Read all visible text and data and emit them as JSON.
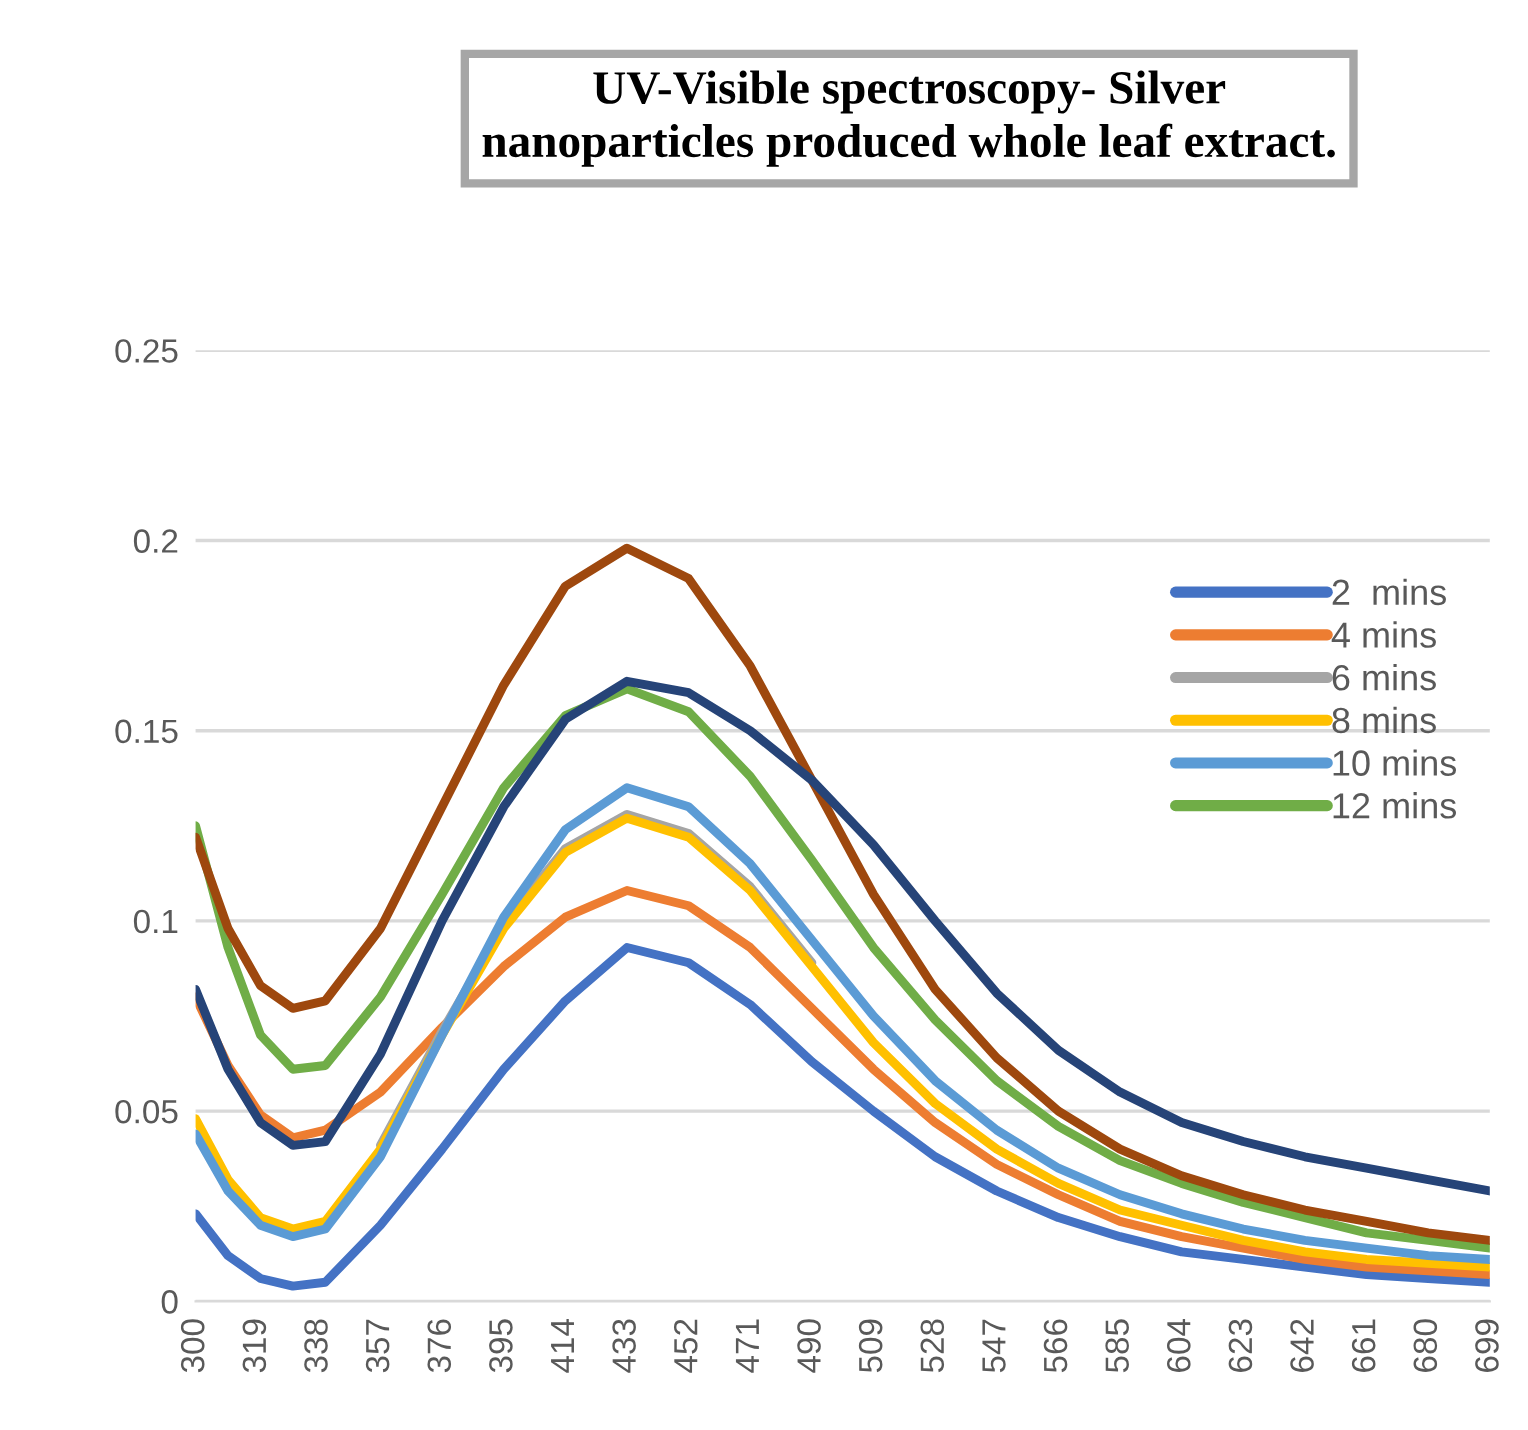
{
  "chart_data": {
    "type": "line",
    "title": "UV-Visible spectroscopy- Silver\nnanoparticles produced whole leaf extract.",
    "x": [
      300,
      310,
      320,
      330,
      340,
      357,
      376,
      395,
      414,
      433,
      452,
      471,
      490,
      509,
      528,
      547,
      566,
      585,
      604,
      623,
      642,
      661,
      680,
      699
    ],
    "series": [
      {
        "name": "2  mins",
        "color": "#4472c4",
        "values": [
          0.023,
          0.012,
          0.006,
          0.004,
          0.005,
          0.02,
          0.04,
          0.061,
          0.079,
          0.093,
          0.089,
          0.078,
          0.063,
          0.05,
          0.038,
          0.029,
          0.022,
          0.017,
          0.013,
          0.011,
          0.009,
          0.007,
          0.006,
          0.005
        ]
      },
      {
        "name": "4 mins",
        "color": "#ed7d31",
        "values": [
          0.08,
          0.062,
          0.049,
          0.043,
          0.045,
          0.055,
          0.072,
          0.088,
          0.101,
          0.108,
          0.104,
          0.093,
          0.077,
          0.061,
          0.047,
          0.036,
          0.028,
          0.021,
          0.017,
          0.014,
          0.011,
          0.009,
          0.008,
          0.007
        ]
      },
      {
        "name": "6 mins",
        "color": "#a5a5a5",
        "values": [
          null,
          null,
          null,
          null,
          null,
          0.041,
          0.071,
          0.099,
          0.119,
          0.128,
          0.123,
          0.109,
          0.089,
          null,
          null,
          null,
          null,
          null,
          null,
          null,
          null,
          null,
          null,
          null
        ]
      },
      {
        "name": "8 mins",
        "color": "#ffc000",
        "values": [
          0.048,
          0.032,
          0.022,
          0.019,
          0.021,
          0.04,
          0.07,
          0.098,
          0.118,
          0.127,
          0.122,
          0.108,
          0.088,
          0.068,
          0.052,
          0.04,
          0.031,
          0.024,
          0.02,
          0.016,
          0.013,
          0.011,
          0.01,
          0.009
        ]
      },
      {
        "name": "10 mins",
        "color": "#5b9bd5",
        "values": [
          0.044,
          0.029,
          0.02,
          0.017,
          0.019,
          0.038,
          0.07,
          0.101,
          0.124,
          0.135,
          0.13,
          0.115,
          0.095,
          0.075,
          0.058,
          0.045,
          0.035,
          0.028,
          0.023,
          0.019,
          0.016,
          0.014,
          0.012,
          0.011
        ]
      },
      {
        "name": "12 mins",
        "color": "#70ad47",
        "values": [
          0.125,
          0.093,
          0.07,
          0.061,
          0.062,
          0.08,
          0.107,
          0.135,
          0.154,
          0.161,
          0.155,
          0.138,
          0.116,
          0.093,
          0.074,
          0.058,
          0.046,
          0.037,
          0.031,
          0.026,
          0.022,
          0.018,
          0.016,
          0.014
        ]
      },
      {
        "color": "#9e480e",
        "values": [
          0.122,
          0.098,
          0.083,
          0.077,
          0.079,
          0.098,
          0.13,
          0.162,
          0.188,
          0.198,
          0.19,
          0.167,
          0.137,
          0.107,
          0.082,
          0.064,
          0.05,
          0.04,
          0.033,
          0.028,
          0.024,
          0.021,
          0.018,
          0.016
        ]
      },
      {
        "color": "#264478",
        "values": [
          0.082,
          0.061,
          0.047,
          0.041,
          0.042,
          0.065,
          0.1,
          0.13,
          0.153,
          0.163,
          0.16,
          0.15,
          0.137,
          0.12,
          0.1,
          0.081,
          0.066,
          0.055,
          0.047,
          0.042,
          0.038,
          0.035,
          0.032,
          0.029
        ]
      }
    ],
    "xlim": [
      300,
      699
    ],
    "xticks": [
      300,
      319,
      338,
      357,
      376,
      395,
      414,
      433,
      452,
      471,
      490,
      509,
      528,
      547,
      566,
      585,
      604,
      623,
      642,
      661,
      680,
      699
    ],
    "ylim": [
      0,
      0.25
    ],
    "yticks": [
      0,
      {
        "value": 0.05,
        "label": "0.05"
      },
      {
        "value": 0.1,
        "label": "0.1"
      },
      {
        "value": 0.15,
        "label": "0.15"
      },
      {
        "value": 0.2,
        "label": "0.2"
      },
      {
        "value": 0.25,
        "label": "0.25"
      }
    ],
    "grid": "y",
    "legend": "right",
    "marker": "none",
    "line_style": "solid"
  }
}
